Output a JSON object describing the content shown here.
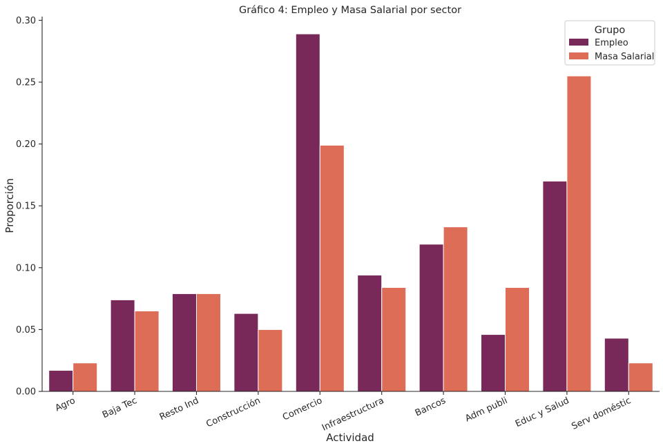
{
  "chart_data": {
    "type": "bar",
    "title": "Gráfico 4: Empleo y Masa Salarial por sector",
    "xlabel": "Actividad",
    "ylabel": "Proporción",
    "ylim": [
      0,
      0.303
    ],
    "yticks": [
      "0.00",
      "0.05",
      "0.10",
      "0.15",
      "0.20",
      "0.25",
      "0.30"
    ],
    "grid": false,
    "legend": {
      "title": "Grupo",
      "placement": "top-right"
    },
    "categories": [
      "Agro",
      "Baja Tec",
      "Resto Ind",
      "Construcción",
      "Comercio",
      "Infraestructura",
      "Bancos",
      "Adm publi",
      "Educ y Salud",
      "Serv doméstic"
    ],
    "series": [
      {
        "name": "Empleo",
        "color": "#78295a",
        "values": [
          0.017,
          0.074,
          0.079,
          0.063,
          0.289,
          0.094,
          0.119,
          0.046,
          0.17,
          0.043
        ]
      },
      {
        "name": "Masa Salarial",
        "color": "#dd6d56",
        "values": [
          0.023,
          0.065,
          0.079,
          0.05,
          0.199,
          0.084,
          0.133,
          0.084,
          0.255,
          0.023
        ]
      }
    ]
  }
}
